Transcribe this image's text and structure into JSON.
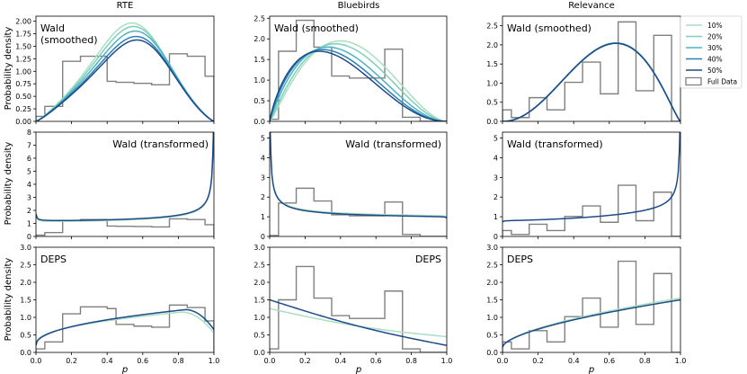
{
  "figure": {
    "columns": [
      "RTE",
      "Bluebirds",
      "Relevance"
    ],
    "rows": [
      "Wald\n(smoothed)",
      "Wald (transformed)",
      "DEPS"
    ],
    "xlabel": "p",
    "ylabel": "Probability density",
    "legend": {
      "placement": "right",
      "entries": [
        {
          "name": "10%",
          "color": "#a9dfc0"
        },
        {
          "name": "20%",
          "color": "#7ecfb8"
        },
        {
          "name": "30%",
          "color": "#4bb3c2"
        },
        {
          "name": "40%",
          "color": "#2a7fb8"
        },
        {
          "name": "50%",
          "color": "#1c4a8a"
        },
        {
          "name": "Full Data",
          "color": "#808080"
        }
      ]
    }
  },
  "chart_data": [
    {
      "type": "line",
      "title": "RTE",
      "panel_label": "Wald\n(smoothed)",
      "ylabel": "Probability density",
      "xlim": [
        0,
        1
      ],
      "ylim": [
        0,
        2.1
      ],
      "yticks": [
        "0.00",
        "0.25",
        "0.50",
        "0.75",
        "1.00",
        "1.25",
        "1.50",
        "1.75",
        "2.00"
      ],
      "yticks_values": [
        0,
        0.25,
        0.5,
        0.75,
        1,
        1.25,
        1.5,
        1.75,
        2
      ],
      "xticks": [],
      "histogram": {
        "edges": [
          0,
          0.05,
          0.15,
          0.25,
          0.4,
          0.45,
          0.55,
          0.65,
          0.75,
          0.85,
          0.95,
          1.0
        ],
        "values": [
          0.1,
          0.3,
          1.2,
          1.3,
          0.8,
          0.78,
          0.76,
          0.73,
          1.35,
          1.3,
          0.9
        ]
      },
      "curves": [
        {
          "name": "10%",
          "mode": 2.0,
          "peak": 0.58,
          "a": 2.3
        },
        {
          "name": "20%",
          "mode": 1.95,
          "peak": 0.6,
          "a": 2.4
        },
        {
          "name": "30%",
          "mode": 1.88,
          "peak": 0.62,
          "a": 2.5
        },
        {
          "name": "40%",
          "mode": 1.78,
          "peak": 0.63,
          "a": 2.6
        },
        {
          "name": "50%",
          "mode": 1.72,
          "peak": 0.64,
          "a": 2.7
        }
      ]
    },
    {
      "type": "line",
      "title": "Bluebirds",
      "panel_label": "Wald (smoothed)",
      "xlim": [
        0,
        1
      ],
      "ylim": [
        0,
        2.55
      ],
      "yticks": [
        "0.0",
        "0.5",
        "1.0",
        "1.5",
        "2.0",
        "2.5"
      ],
      "yticks_values": [
        0,
        0.5,
        1,
        1.5,
        2,
        2.5
      ],
      "xticks": [],
      "histogram": {
        "edges": [
          0,
          0.05,
          0.15,
          0.25,
          0.35,
          0.45,
          0.55,
          0.65,
          0.75,
          0.85,
          1.0
        ],
        "values": [
          0.05,
          1.7,
          2.45,
          1.8,
          1.1,
          1.05,
          1.05,
          1.75,
          0.1,
          0.0
        ]
      },
      "curves": [
        {
          "name": "10%",
          "mode": 1.95,
          "peak": 0.4
        },
        {
          "name": "20%",
          "mode": 1.88,
          "peak": 0.37
        },
        {
          "name": "30%",
          "mode": 1.8,
          "peak": 0.33
        },
        {
          "name": "40%",
          "mode": 1.74,
          "peak": 0.3
        },
        {
          "name": "50%",
          "mode": 1.7,
          "peak": 0.28
        }
      ]
    },
    {
      "type": "line",
      "title": "Relevance",
      "panel_label": "Wald (smoothed)",
      "xlim": [
        0,
        1
      ],
      "ylim": [
        0,
        2.75
      ],
      "yticks": [
        "0.0",
        "0.5",
        "1.0",
        "1.5",
        "2.0",
        "2.5"
      ],
      "yticks_values": [
        0,
        0.5,
        1,
        1.5,
        2,
        2.5
      ],
      "xticks": [],
      "histogram": {
        "edges": [
          0,
          0.05,
          0.15,
          0.25,
          0.35,
          0.45,
          0.55,
          0.65,
          0.75,
          0.85,
          0.95,
          1.0
        ],
        "values": [
          0.3,
          0.1,
          0.62,
          0.3,
          1.02,
          1.55,
          0.72,
          2.6,
          0.8,
          2.25,
          0.0
        ]
      },
      "curves": [
        {
          "name": "10%",
          "mode": 2.05,
          "peak": 0.64
        },
        {
          "name": "20%",
          "mode": 2.05,
          "peak": 0.64
        },
        {
          "name": "30%",
          "mode": 2.05,
          "peak": 0.64
        },
        {
          "name": "40%",
          "mode": 2.04,
          "peak": 0.64
        },
        {
          "name": "50%",
          "mode": 2.04,
          "peak": 0.64
        }
      ]
    },
    {
      "type": "line",
      "panel_label": "Wald (transformed)",
      "ylabel": "Probability density",
      "xlim": [
        0,
        1
      ],
      "ylim": [
        0,
        8
      ],
      "yticks": [
        "0",
        "1",
        "2",
        "3",
        "4",
        "5",
        "6",
        "7",
        "8"
      ],
      "yticks_values": [
        0,
        1,
        2,
        3,
        4,
        5,
        6,
        7,
        8
      ],
      "xticks": [],
      "histogram": {
        "edges": [
          0,
          0.05,
          0.15,
          0.25,
          0.4,
          0.45,
          0.55,
          0.65,
          0.75,
          0.85,
          0.95,
          1.0
        ],
        "values": [
          0.1,
          0.3,
          1.2,
          1.3,
          0.8,
          0.78,
          0.76,
          0.73,
          1.35,
          1.3,
          0.9
        ]
      },
      "curves": [
        {
          "name": "10%",
          "base": 0.75,
          "edge_left": 1.1,
          "edge_right": 7.7
        },
        {
          "name": "50%",
          "base": 0.8,
          "edge_left": 1.2,
          "edge_right": 7.8
        }
      ]
    },
    {
      "type": "line",
      "panel_label": "Wald (transformed)",
      "xlim": [
        0,
        1
      ],
      "ylim": [
        0,
        5.3
      ],
      "yticks": [
        "0",
        "1",
        "2",
        "3",
        "4",
        "5"
      ],
      "yticks_values": [
        0,
        1,
        2,
        3,
        4,
        5
      ],
      "xticks": [],
      "histogram": {
        "edges": [
          0,
          0.05,
          0.15,
          0.25,
          0.35,
          0.45,
          0.55,
          0.65,
          0.75,
          0.85,
          1.0
        ],
        "values": [
          0.05,
          1.7,
          2.45,
          1.8,
          1.1,
          1.05,
          1.05,
          1.75,
          0.1,
          0.0
        ]
      },
      "curves": [
        {
          "name": "10%",
          "base": 0.85,
          "edge_left": 5.2,
          "edge_right": 0.8
        },
        {
          "name": "50%",
          "base": 0.8,
          "edge_left": 5.2,
          "edge_right": 0.75
        }
      ]
    },
    {
      "type": "line",
      "panel_label": "Wald (transformed)",
      "xlim": [
        0,
        1
      ],
      "ylim": [
        0,
        5.3
      ],
      "yticks": [
        "0",
        "1",
        "2",
        "3",
        "4",
        "5"
      ],
      "yticks_values": [
        0,
        1,
        2,
        3,
        4,
        5
      ],
      "xticks": [],
      "histogram": {
        "edges": [
          0,
          0.05,
          0.15,
          0.25,
          0.35,
          0.45,
          0.55,
          0.65,
          0.75,
          0.85,
          0.95,
          1.0
        ],
        "values": [
          0.3,
          0.1,
          0.62,
          0.3,
          1.02,
          1.55,
          0.72,
          2.6,
          0.8,
          2.25,
          0.0
        ]
      },
      "curves": [
        {
          "name": "50%",
          "base": 0.6,
          "edge_left": 0.55,
          "edge_right": 5.0
        }
      ]
    },
    {
      "type": "line",
      "panel_label": "DEPS",
      "ylabel": "Probability density",
      "xlabel": "p",
      "xlim": [
        0,
        1
      ],
      "ylim": [
        0,
        3.0
      ],
      "yticks": [
        "0.0",
        "0.5",
        "1.0",
        "1.5",
        "2.0",
        "2.5",
        "3.0"
      ],
      "yticks_values": [
        0,
        0.5,
        1,
        1.5,
        2,
        2.5,
        3
      ],
      "xticks": [
        "0.0",
        "0.2",
        "0.4",
        "0.6",
        "0.8",
        "1.0"
      ],
      "xticks_values": [
        0,
        0.2,
        0.4,
        0.6,
        0.8,
        1.0
      ],
      "histogram": {
        "edges": [
          0,
          0.05,
          0.15,
          0.25,
          0.4,
          0.45,
          0.55,
          0.65,
          0.75,
          0.85,
          0.95,
          1.0
        ],
        "values": [
          0.1,
          0.3,
          1.1,
          1.3,
          1.25,
          0.8,
          0.75,
          0.72,
          1.35,
          1.28,
          0.9
        ]
      },
      "curves": [
        {
          "name": "10%",
          "start": 0.25,
          "peak": 1.15,
          "peakx": 0.82,
          "end": 0.55
        },
        {
          "name": "50%",
          "start": 0.2,
          "peak": 1.22,
          "peakx": 0.84,
          "end": 0.65
        }
      ]
    },
    {
      "type": "line",
      "panel_label": "DEPS",
      "xlabel": "p",
      "xlim": [
        0,
        1
      ],
      "ylim": [
        0,
        3.0
      ],
      "yticks": [
        "0.0",
        "0.5",
        "1.0",
        "1.5",
        "2.0",
        "2.5",
        "3.0"
      ],
      "yticks_values": [
        0,
        0.5,
        1,
        1.5,
        2,
        2.5,
        3
      ],
      "xticks": [
        "0.0",
        "0.2",
        "0.4",
        "0.6",
        "0.8",
        "1.0"
      ],
      "xticks_values": [
        0,
        0.2,
        0.4,
        0.6,
        0.8,
        1.0
      ],
      "histogram": {
        "edges": [
          0,
          0.05,
          0.15,
          0.25,
          0.35,
          0.45,
          0.55,
          0.65,
          0.75,
          0.85,
          1.0
        ],
        "values": [
          0.1,
          1.5,
          2.45,
          1.55,
          1.05,
          0.97,
          0.97,
          1.75,
          0.1,
          0.0
        ]
      },
      "curves": [
        {
          "name": "10%",
          "start": 1.25,
          "end": 0.45
        },
        {
          "name": "50%",
          "start": 1.5,
          "end": 0.2
        }
      ]
    },
    {
      "type": "line",
      "panel_label": "DEPS",
      "xlabel": "p",
      "xlim": [
        0,
        1
      ],
      "ylim": [
        0,
        3.0
      ],
      "yticks": [
        "0.0",
        "0.5",
        "1.0",
        "1.5",
        "2.0",
        "2.5",
        "3.0"
      ],
      "yticks_values": [
        0,
        0.5,
        1,
        1.5,
        2,
        2.5,
        3
      ],
      "xticks": [
        "0.0",
        "0.2",
        "0.4",
        "0.6",
        "0.8",
        "1.0"
      ],
      "xticks_values": [
        0,
        0.2,
        0.4,
        0.6,
        0.8,
        1.0
      ],
      "histogram": {
        "edges": [
          0,
          0.05,
          0.15,
          0.25,
          0.35,
          0.45,
          0.55,
          0.65,
          0.75,
          0.85,
          0.95,
          1.0
        ],
        "values": [
          0.3,
          0.1,
          0.62,
          0.3,
          1.02,
          1.55,
          0.72,
          2.6,
          0.8,
          2.25,
          0.0
        ]
      },
      "curves": [
        {
          "name": "10%",
          "start": 0.15,
          "end": 1.55
        },
        {
          "name": "50%",
          "start": 0.15,
          "end": 1.5
        }
      ]
    }
  ]
}
